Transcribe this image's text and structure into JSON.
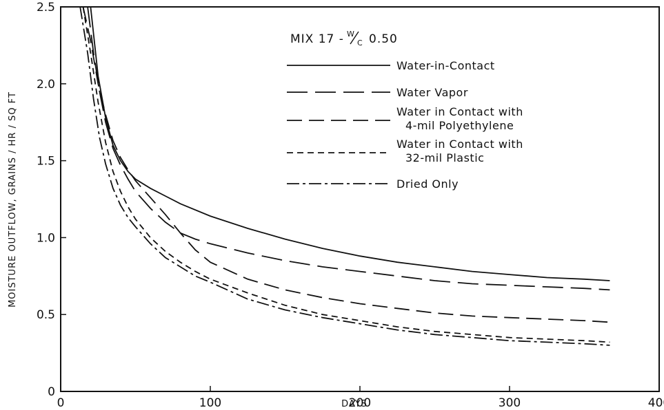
{
  "chart_data": {
    "type": "line",
    "title": {
      "main": "MIX 17 - ",
      "ratio_numerator": "W",
      "ratio_denominator": "C",
      "ratio_value": "0.50"
    },
    "xlabel": "DAYS",
    "ylabel": "MOISTURE OUTFLOW, GRAINS / HR / SQ FT",
    "xlim": [
      0,
      400
    ],
    "ylim": [
      0,
      2.5
    ],
    "x_ticks": [
      0,
      100,
      200,
      300,
      400
    ],
    "x_tick_labels": [
      "0",
      "100",
      "200",
      "300",
      "400"
    ],
    "y_ticks": [
      0,
      0.5,
      1.0,
      1.5,
      2.0,
      2.5
    ],
    "y_tick_labels": [
      "0",
      "0.5",
      "1.0",
      "1.5",
      "2.0",
      "2.5"
    ],
    "grid": false,
    "legend_position": "top-right",
    "series": [
      {
        "name": "Water-in-Contact",
        "legend_lines": [
          "Water-in-Contact"
        ],
        "dash": "solid",
        "x": [
          20,
          25,
          30,
          35,
          40,
          45,
          50,
          60,
          70,
          80,
          100,
          125,
          150,
          175,
          200,
          225,
          250,
          275,
          300,
          325,
          350,
          367
        ],
        "y": [
          2.5,
          2.05,
          1.78,
          1.6,
          1.5,
          1.43,
          1.38,
          1.32,
          1.27,
          1.22,
          1.14,
          1.06,
          0.99,
          0.93,
          0.88,
          0.84,
          0.81,
          0.78,
          0.76,
          0.74,
          0.73,
          0.72
        ]
      },
      {
        "name": "Water Vapor",
        "legend_lines": [
          "Water Vapor"
        ],
        "dash": "long-dash",
        "x": [
          18,
          22,
          26,
          30,
          35,
          40,
          45,
          50,
          60,
          70,
          80,
          90,
          100,
          125,
          150,
          175,
          200,
          225,
          250,
          275,
          300,
          325,
          350,
          367
        ],
        "y": [
          2.5,
          2.2,
          1.95,
          1.75,
          1.58,
          1.47,
          1.38,
          1.3,
          1.19,
          1.1,
          1.03,
          0.99,
          0.96,
          0.9,
          0.85,
          0.81,
          0.78,
          0.75,
          0.72,
          0.7,
          0.69,
          0.68,
          0.67,
          0.66
        ]
      },
      {
        "name": "Water in Contact with 4-mil Polyethylene",
        "legend_lines": [
          "Water in Contact with",
          "4-mil Polyethylene"
        ],
        "dash": "dash",
        "x": [
          15,
          20,
          25,
          30,
          35,
          40,
          45,
          50,
          60,
          70,
          80,
          90,
          100,
          125,
          150,
          175,
          200,
          225,
          250,
          275,
          300,
          325,
          350,
          367
        ],
        "y": [
          2.5,
          2.28,
          2.0,
          1.8,
          1.63,
          1.52,
          1.44,
          1.37,
          1.26,
          1.15,
          1.03,
          0.92,
          0.84,
          0.73,
          0.66,
          0.61,
          0.57,
          0.54,
          0.51,
          0.49,
          0.48,
          0.47,
          0.46,
          0.45
        ]
      },
      {
        "name": "Water in Contact with 32-mil Plastic",
        "legend_lines": [
          "Water in Contact with",
          "32-mil Plastic"
        ],
        "dash": "short-dash",
        "x": [
          15,
          20,
          25,
          30,
          35,
          40,
          45,
          50,
          60,
          70,
          80,
          90,
          100,
          125,
          150,
          175,
          200,
          225,
          250,
          275,
          300,
          325,
          350,
          367
        ],
        "y": [
          2.5,
          2.2,
          1.88,
          1.62,
          1.43,
          1.3,
          1.2,
          1.12,
          1.0,
          0.91,
          0.84,
          0.78,
          0.73,
          0.64,
          0.56,
          0.5,
          0.46,
          0.42,
          0.39,
          0.37,
          0.35,
          0.34,
          0.33,
          0.32
        ]
      },
      {
        "name": "Dried Only",
        "legend_lines": [
          "Dried Only"
        ],
        "dash": "dash-dot",
        "x": [
          13,
          18,
          22,
          26,
          30,
          35,
          40,
          45,
          50,
          60,
          70,
          80,
          90,
          100,
          125,
          150,
          175,
          200,
          225,
          250,
          275,
          300,
          325,
          350,
          367
        ],
        "y": [
          2.5,
          2.2,
          1.9,
          1.65,
          1.48,
          1.32,
          1.21,
          1.13,
          1.07,
          0.96,
          0.87,
          0.81,
          0.75,
          0.71,
          0.6,
          0.53,
          0.48,
          0.44,
          0.4,
          0.37,
          0.35,
          0.33,
          0.32,
          0.31,
          0.3
        ]
      }
    ]
  }
}
